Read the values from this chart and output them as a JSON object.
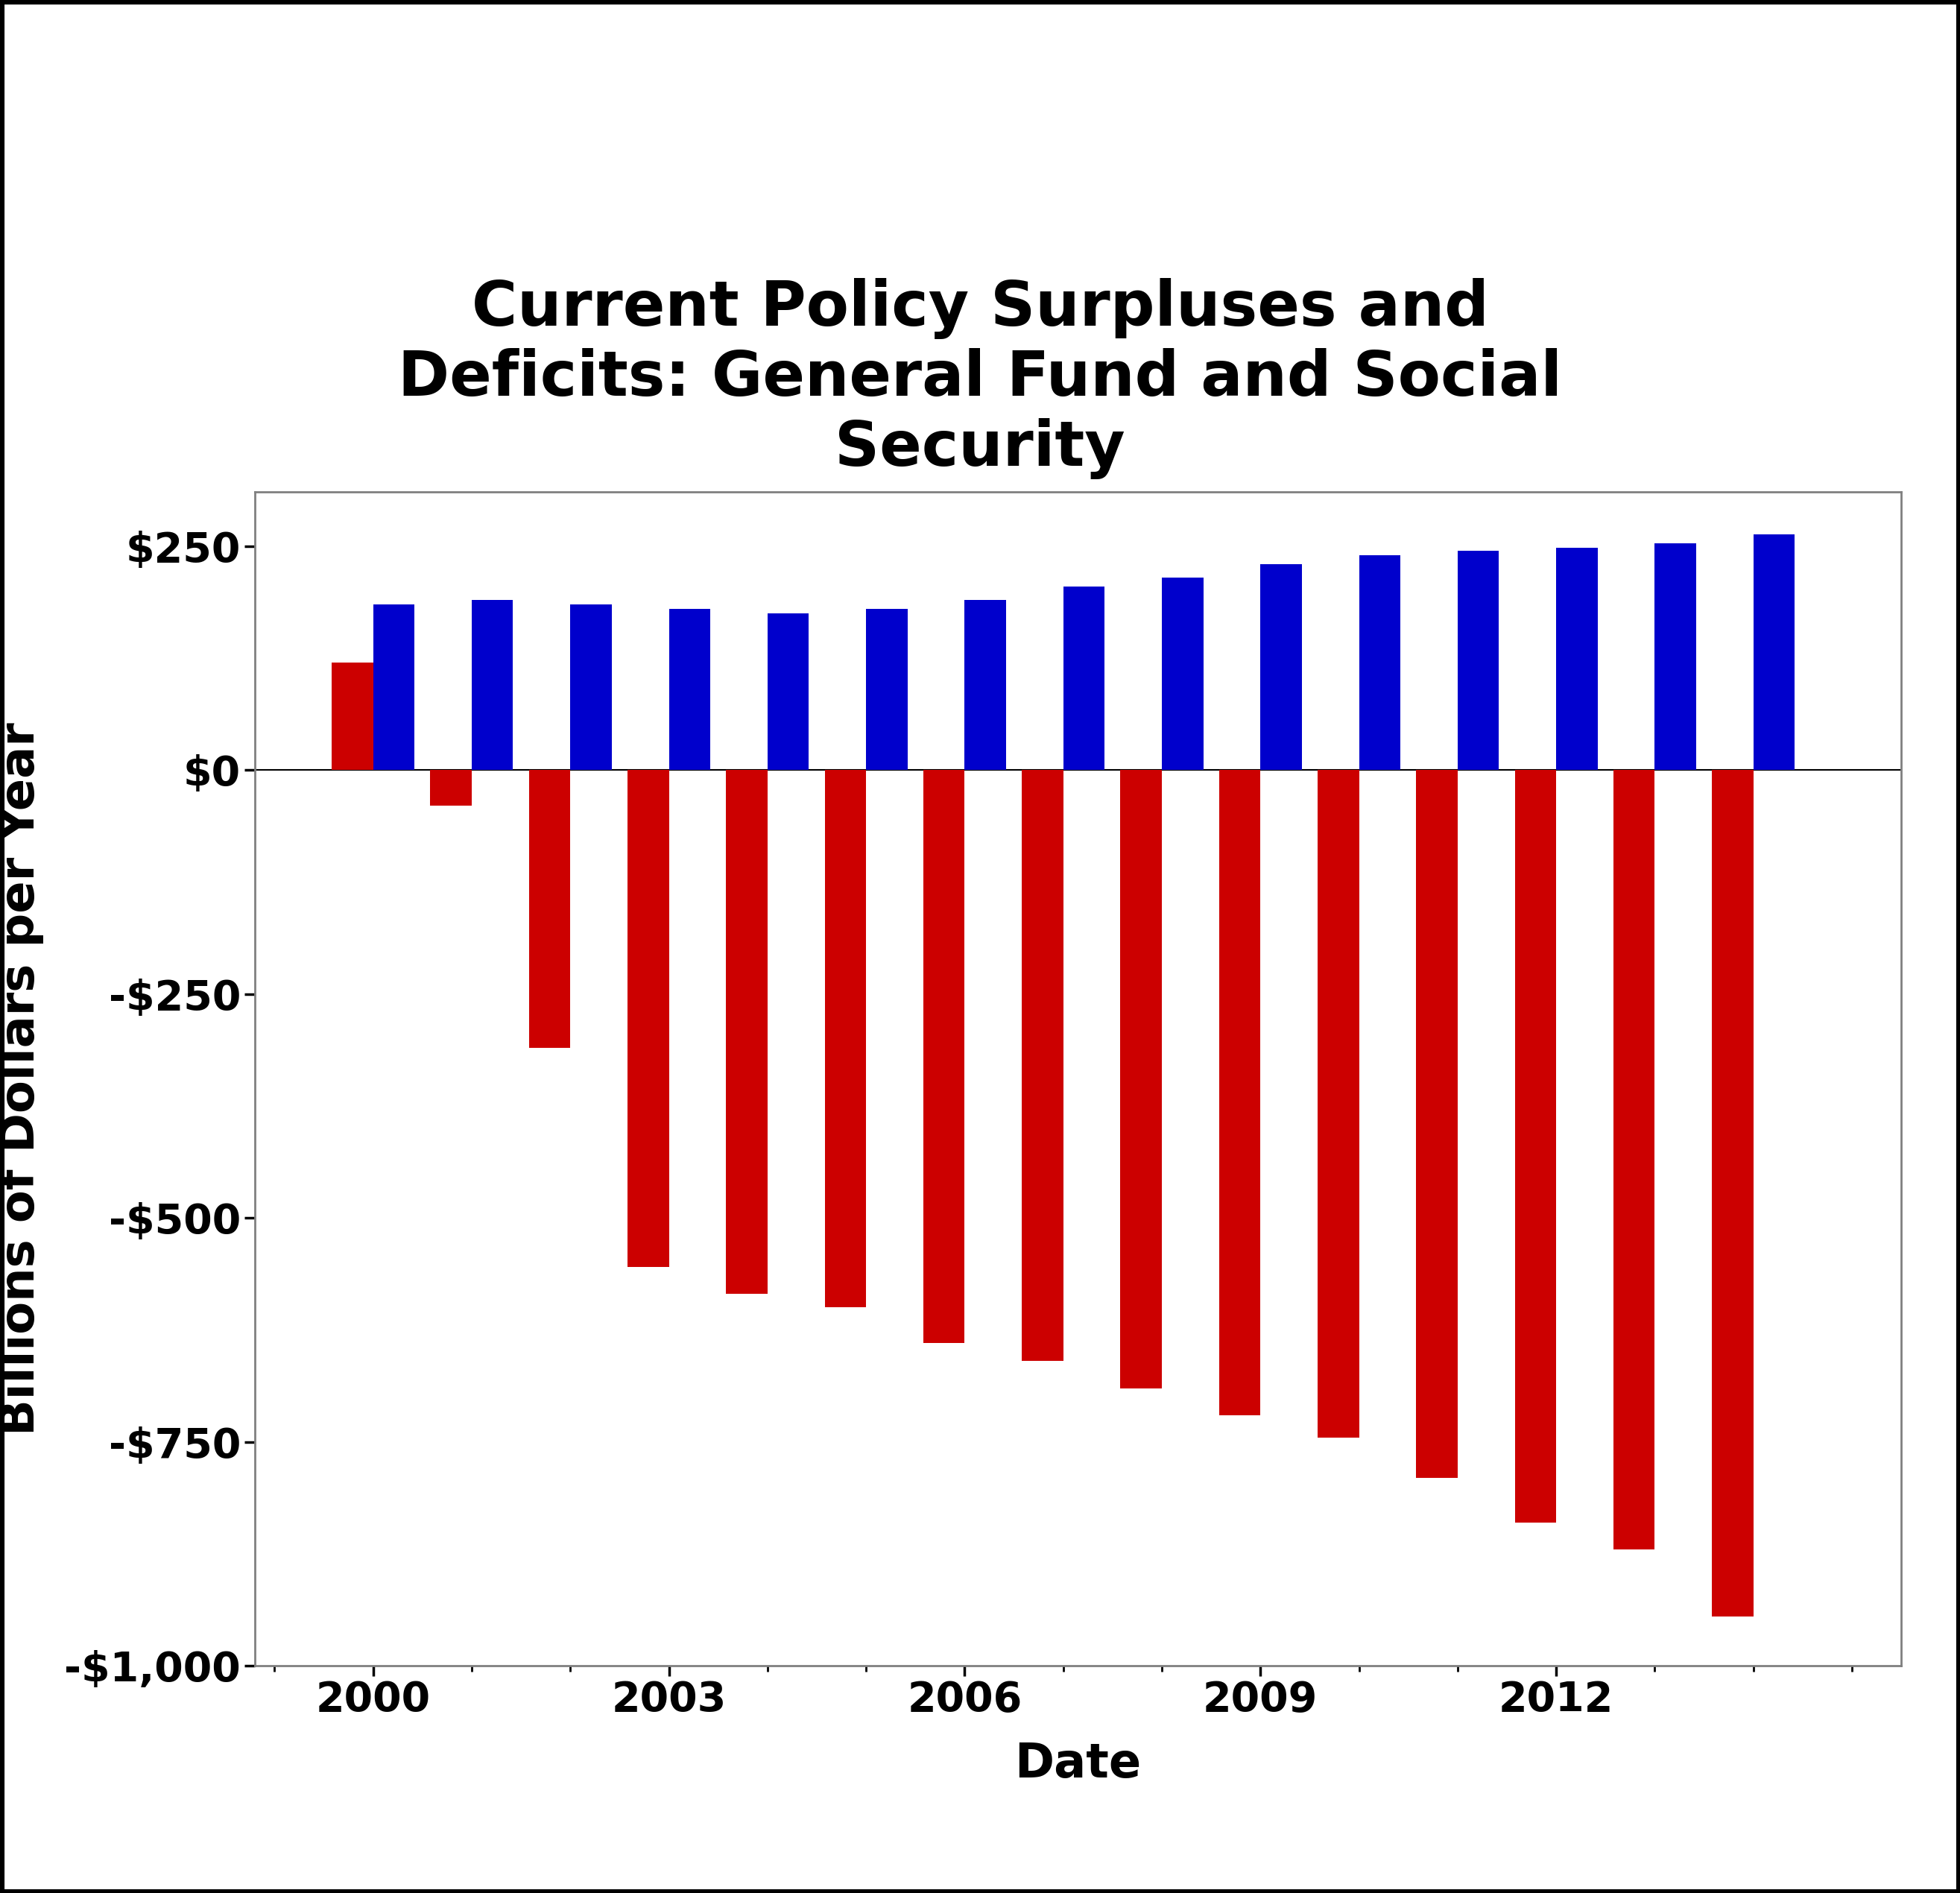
{
  "title": "Current Policy Surpluses and\nDeficits: General Fund and Social\nSecurity",
  "xlabel": "Date",
  "ylabel": "Billions of Dollars per Year",
  "years": [
    2000,
    2001,
    2002,
    2003,
    2004,
    2005,
    2006,
    2007,
    2008,
    2009,
    2010,
    2011,
    2012,
    2013,
    2014
  ],
  "general_fund": [
    120,
    -40,
    -310,
    -555,
    -585,
    -600,
    -640,
    -660,
    -690,
    -720,
    -745,
    -790,
    -840,
    -870,
    -945
  ],
  "social_security": [
    185,
    190,
    185,
    180,
    175,
    180,
    190,
    205,
    215,
    230,
    240,
    245,
    248,
    253,
    263
  ],
  "gf_color": "#CC0000",
  "ss_color": "#0000CC",
  "ylim": [
    -1000,
    310
  ],
  "yticks": [
    250,
    0,
    -250,
    -500,
    -750,
    -1000
  ],
  "ytick_labels": [
    "$250",
    "$0",
    "-$250",
    "-$500",
    "-$750",
    "-$1,000"
  ],
  "xticks": [
    2000,
    2003,
    2006,
    2009,
    2012
  ],
  "bar_width": 0.42,
  "title_fontsize": 60,
  "axis_label_fontsize": 46,
  "tick_fontsize": 40,
  "legend_fontsize": 42,
  "bg_color": "#FFFFFF",
  "plot_bg_color": "#FFFFFF",
  "outer_border_color": "#000000",
  "spine_color": "#808080"
}
